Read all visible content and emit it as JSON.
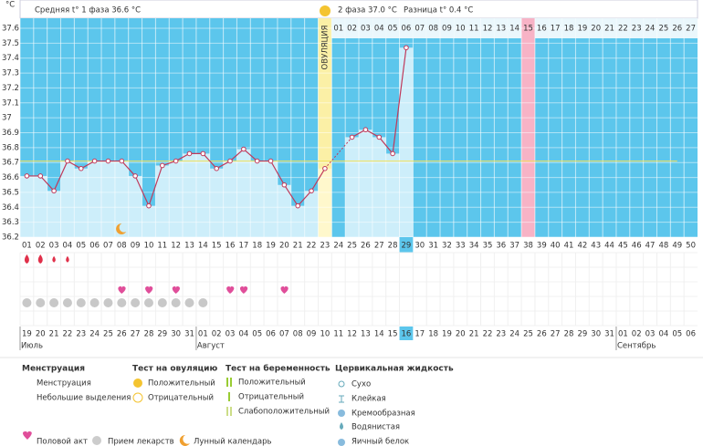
{
  "header": {
    "phase1": "Средняя t° 1 фаза 36.6 °C",
    "phase2": "2 фаза 37.0 °C",
    "diff": "Разница t° 0.4 °C"
  },
  "chart_data": {
    "type": "line",
    "y_unit": "°C",
    "ovulation_label": "ОВУЛЯЦИЯ",
    "x": [
      "01",
      "02",
      "03",
      "04",
      "05",
      "06",
      "07",
      "08",
      "09",
      "10",
      "11",
      "12",
      "13",
      "14",
      "15",
      "16",
      "17",
      "18",
      "19",
      "20",
      "21",
      "22",
      "23",
      "24",
      "25",
      "26",
      "27",
      "28",
      "29",
      "30",
      "31",
      "32",
      "33",
      "34",
      "35",
      "36",
      "37",
      "38",
      "39",
      "40",
      "41",
      "42",
      "43",
      "44",
      "45",
      "46",
      "47",
      "48",
      "49",
      "50"
    ],
    "values": [
      36.61,
      36.61,
      36.51,
      36.71,
      36.66,
      36.71,
      36.71,
      36.71,
      36.61,
      36.41,
      36.68,
      36.71,
      36.76,
      36.76,
      36.66,
      36.71,
      36.79,
      36.71,
      36.71,
      36.55,
      36.41,
      36.51,
      36.66,
      null,
      36.87,
      36.92,
      36.87,
      36.76,
      37.47,
      null,
      null,
      null,
      null,
      null,
      null,
      null,
      null,
      null,
      null,
      null,
      null,
      null,
      null,
      null,
      null,
      null,
      null,
      null,
      null,
      null
    ],
    "luteal_days": [
      null,
      null,
      null,
      null,
      null,
      null,
      null,
      null,
      null,
      null,
      null,
      null,
      null,
      null,
      null,
      null,
      null,
      null,
      null,
      null,
      null,
      null,
      null,
      "01",
      "02",
      "03",
      "04",
      "05",
      "06",
      "07",
      "08",
      "09",
      "10",
      "11",
      "12",
      "13",
      "14",
      "15",
      "16",
      "17",
      "18",
      "19",
      "20",
      "21",
      "22",
      "23",
      "24",
      "25",
      "26",
      "27"
    ],
    "ylim": [
      36.2,
      37.6
    ],
    "yticks": [
      36.2,
      36.3,
      36.4,
      36.5,
      36.6,
      36.7,
      36.8,
      36.9,
      37,
      37.1,
      37.2,
      37.3,
      37.4,
      37.5,
      37.6
    ],
    "coverline": 36.71,
    "ovulation_day": 23,
    "highlight_day": 38,
    "today_day": 29,
    "moon_day": 8,
    "menstruation_days": [
      1,
      2
    ],
    "spotting_days": [
      3,
      4
    ],
    "sex_days": [
      8,
      10,
      12,
      16,
      17,
      20
    ],
    "pill_days": [
      1,
      2,
      3,
      4,
      5,
      6,
      7,
      8,
      9,
      10,
      11,
      12,
      13,
      14
    ],
    "dates": [
      "19",
      "20",
      "21",
      "22",
      "23",
      "24",
      "25",
      "26",
      "27",
      "28",
      "29",
      "30",
      "31",
      "01",
      "02",
      "03",
      "04",
      "05",
      "06",
      "07",
      "08",
      "09",
      "10",
      "11",
      "12",
      "13",
      "14",
      "15",
      "16",
      "17",
      "18",
      "19",
      "20",
      "21",
      "22",
      "23",
      "24",
      "25",
      "26",
      "27",
      "28",
      "29",
      "30",
      "31",
      "01",
      "02",
      "03",
      "04",
      "05",
      "06"
    ],
    "weekend": [
      true,
      false,
      false,
      false,
      false,
      false,
      false,
      true,
      false,
      false,
      false,
      false,
      false,
      true,
      true,
      false,
      false,
      false,
      false,
      false,
      true,
      true,
      false,
      false,
      false,
      false,
      false,
      true,
      false,
      false,
      false,
      false,
      false,
      false,
      true,
      true,
      false,
      false,
      false,
      false,
      false,
      true,
      true,
      false,
      false,
      false,
      false,
      false,
      true,
      true
    ],
    "months": [
      {
        "label": "Июль",
        "day": 1
      },
      {
        "label": "Август",
        "day": 14
      },
      {
        "label": "Сентябрь",
        "day": 45
      }
    ]
  },
  "legend": {
    "menstruation": {
      "title": "Менструация",
      "items": [
        "Менструация",
        "Небольшие выделения"
      ]
    },
    "ovulation_test": {
      "title": "Тест на овуляцию",
      "items": [
        "Положительный",
        "Отрицательный"
      ]
    },
    "pregnancy_test": {
      "title": "Тест на беременность",
      "items": [
        "Положительный",
        "Отрицательный",
        "Слабоположительный"
      ]
    },
    "cervical": {
      "title": "Цервикальная жидкость",
      "items": [
        "Сухо",
        "Клейкая",
        "Кремообразная",
        "Водянистая",
        "Яичный белок"
      ]
    },
    "bottom": [
      "Половой акт",
      "Прием лекарств",
      "Лунный календарь"
    ]
  }
}
